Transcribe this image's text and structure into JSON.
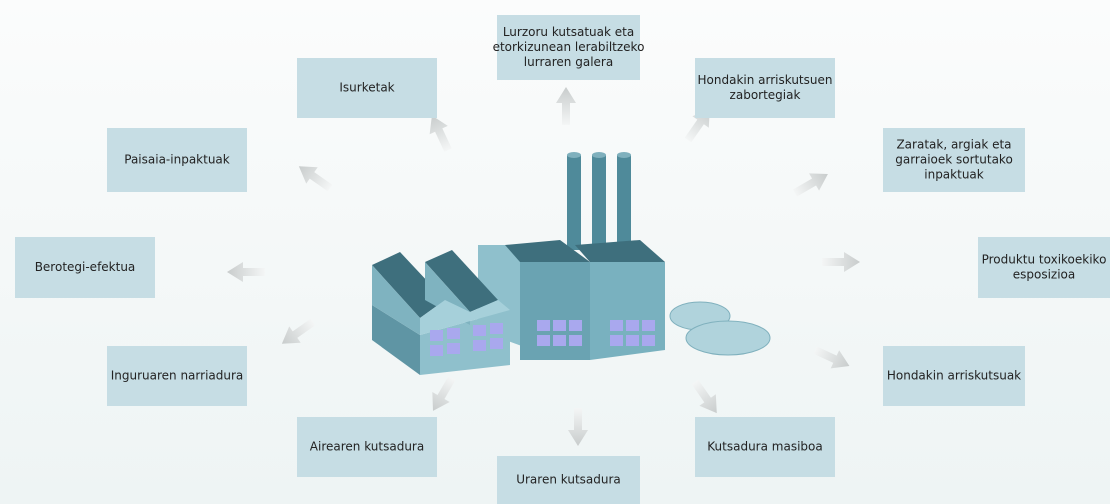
{
  "nodes": [
    {
      "lines": [
        "Isurketak"
      ]
    },
    {
      "lines": [
        "Lurzoru kutsatuak eta",
        "etorkizunean lerabiltzeko",
        "lurraren galera"
      ]
    },
    {
      "lines": [
        "Hondakin arriskutsuen",
        "zabortegiak"
      ]
    },
    {
      "lines": [
        "Zaratak, argiak eta",
        "garraioek sortutako",
        "inpaktuak"
      ]
    },
    {
      "lines": [
        "Produktu toxikoekiko",
        "esposizioa"
      ]
    },
    {
      "lines": [
        "Hondakin arriskutsuak"
      ]
    },
    {
      "lines": [
        "Kutsadura masiboa"
      ]
    },
    {
      "lines": [
        "Uraren kutsadura"
      ]
    },
    {
      "lines": [
        "Airearen kutsadura"
      ]
    },
    {
      "lines": [
        "Inguruaren narriadura"
      ]
    },
    {
      "lines": [
        "Berotegi-efektua"
      ]
    },
    {
      "lines": [
        "Paisaia-inpaktuak"
      ]
    }
  ]
}
